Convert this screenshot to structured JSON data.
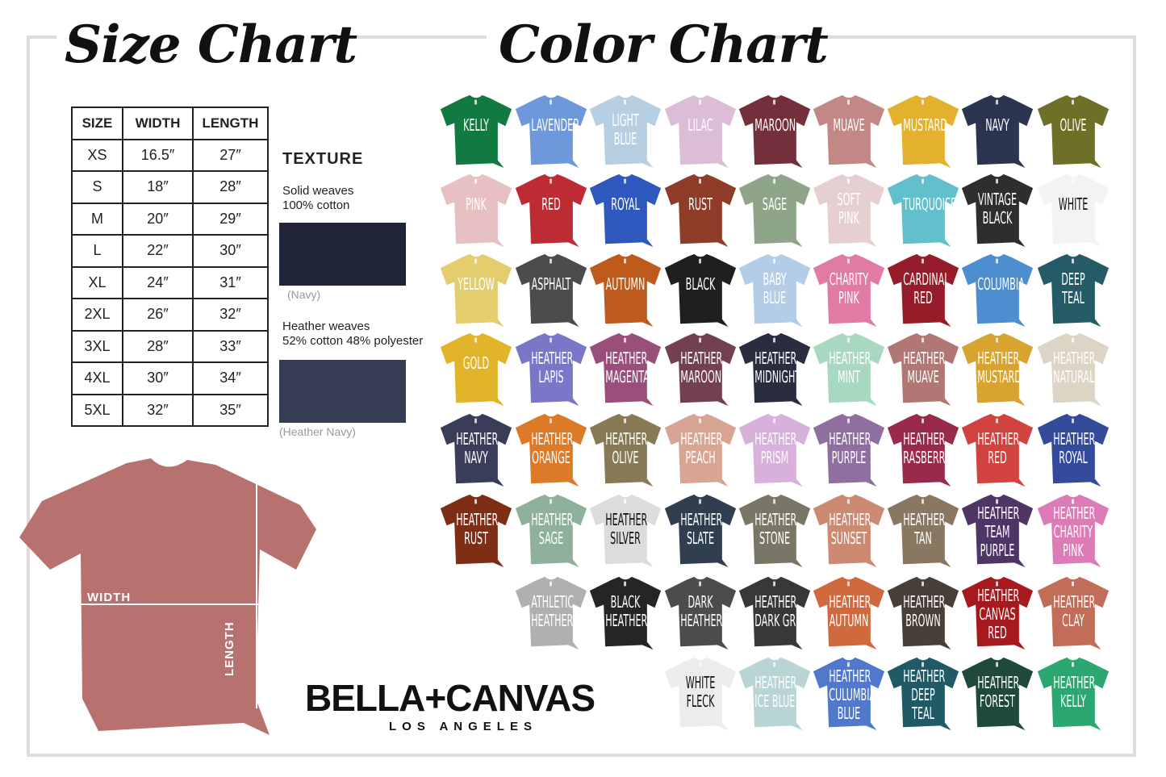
{
  "size_chart": {
    "title": "Size Chart",
    "headers": [
      "SIZE",
      "WIDTH",
      "LENGTH"
    ],
    "rows": [
      [
        "XS",
        "16.5″",
        "27″"
      ],
      [
        "S",
        "18″",
        "28″"
      ],
      [
        "M",
        "20″",
        "29″"
      ],
      [
        "L",
        "22″",
        "30″"
      ],
      [
        "XL",
        "24″",
        "31″"
      ],
      [
        "2XL",
        "26″",
        "32″"
      ],
      [
        "3XL",
        "28″",
        "33″"
      ],
      [
        "4XL",
        "30″",
        "34″"
      ],
      [
        "5XL",
        "32″",
        "35″"
      ]
    ]
  },
  "texture": {
    "heading": "TEXTURE",
    "solid_line1": "Solid weaves",
    "solid_line2": "100% cotton",
    "solid_caption": "(Navy)",
    "solid_color": "#1f2438",
    "heather_line1": "Heather weaves",
    "heather_line2": "52% cotton 48% polyester",
    "heather_caption": "(Heather Navy)",
    "heather_color": "#363c52"
  },
  "diagram": {
    "width_label": "WIDTH",
    "length_label": "LENGTH",
    "shirt_color": "#b7716f"
  },
  "brand": {
    "name": "BELLA+CANVAS",
    "sub": "LOS ANGELES"
  },
  "color_chart": {
    "title": "Color Chart",
    "rows": [
      [
        [
          "KELLY",
          "#117a40"
        ],
        [
          "LAVENDER",
          "#6e98dc"
        ],
        [
          "LIGHT\nBLUE",
          "#b7cfe3"
        ],
        [
          "LILAC",
          "#dcbdd8"
        ],
        [
          "MAROON",
          "#74303a"
        ],
        [
          "MUAVE",
          "#c38885"
        ],
        [
          "MUSTARD",
          "#e4b12e"
        ],
        [
          "NAVY",
          "#2b3550"
        ],
        [
          "OLIVE",
          "#6e7028"
        ]
      ],
      [
        [
          "PINK",
          "#e6c0c3"
        ],
        [
          "RED",
          "#be2c33"
        ],
        [
          "ROYAL",
          "#2e58bd"
        ],
        [
          "RUST",
          "#8f3d29"
        ],
        [
          "SAGE",
          "#8fa58a"
        ],
        [
          "SOFT\nPINK",
          "#e6cfd1"
        ],
        [
          "TURQUOISE",
          "#62bfcc"
        ],
        [
          "VINTAGE\nBLACK",
          "#2e2e2e"
        ],
        [
          "WHITE",
          "#f3f3f3"
        ]
      ],
      [
        [
          "YELLOW",
          "#e4cd6c"
        ],
        [
          "ASPHALT",
          "#4c4c4e"
        ],
        [
          "AUTUMN",
          "#bd5a1c"
        ],
        [
          "BLACK",
          "#1f1f1f"
        ],
        [
          "BABY\nBLUE",
          "#b4cde6"
        ],
        [
          "CHARITY\nPINK",
          "#e17ba3"
        ],
        [
          "CARDINAL\nRED",
          "#951c28"
        ],
        [
          "COLUMBIA",
          "#4d8ed0"
        ],
        [
          "DEEP\nTEAL",
          "#255b67"
        ]
      ],
      [
        [
          "GOLD",
          "#e2b42a"
        ],
        [
          "HEATHER\nLAPIS",
          "#7a76c8"
        ],
        [
          "HEATHER\nMAGENTA",
          "#9a4f7a"
        ],
        [
          "HEATHER\nMAROON",
          "#73404f"
        ],
        [
          "HEATHER\nMIDNIGHT",
          "#2a2c40"
        ],
        [
          "HEATHER\nMINT",
          "#a9d8c1"
        ],
        [
          "HEATHER\nMUAVE",
          "#b07775"
        ],
        [
          "HEATHER\nMUSTARD",
          "#d8a32e"
        ],
        [
          "HEATHER\nNATURAL",
          "#dcd4c4"
        ]
      ],
      [
        [
          "HEATHER\nNAVY",
          "#3a3d5a"
        ],
        [
          "HEATHER\nORANGE",
          "#dc7a2a"
        ],
        [
          "HEATHER\nOLIVE",
          "#877a55"
        ],
        [
          "HEATHER\nPEACH",
          "#d8a493"
        ],
        [
          "HEATHER\nPRISM",
          "#d8b0dc"
        ],
        [
          "HEATHER\nPURPLE",
          "#8f6f9f"
        ],
        [
          "HEATHER\nRASBERRY",
          "#9a2a4a"
        ],
        [
          "HEATHER\nRED",
          "#d2433f"
        ],
        [
          "HEATHER\nROYAL",
          "#344a9a"
        ]
      ],
      [
        [
          "HEATHER\nRUST",
          "#7f2e16"
        ],
        [
          "HEATHER\nSAGE",
          "#8fb09a"
        ],
        [
          "HEATHER\nSILVER",
          "#dcdcdc"
        ],
        [
          "HEATHER\nSLATE",
          "#2f3f4f"
        ],
        [
          "HEATHER\nSTONE",
          "#7a7666"
        ],
        [
          "HEATHER\nSUNSET",
          "#cc8a72"
        ],
        [
          "HEATHER\nTAN",
          "#8a7762"
        ],
        [
          "HEATHER\nTEAM\nPURPLE",
          "#4f3566"
        ],
        [
          "HEATHER\nCHARITY\nPINK",
          "#dc7bb5"
        ]
      ],
      [
        [
          "ATHLETIC\nHEATHER",
          "#b0b0b0"
        ],
        [
          "BLACK\nHEATHER",
          "#252525"
        ],
        [
          "DARK\nHEATHER",
          "#4c4c4c"
        ],
        [
          "HEATHER\nDARK GREY",
          "#383838"
        ],
        [
          "HEATHER\nAUTUMN",
          "#d06a3e"
        ],
        [
          "HEATHER\nBROWN",
          "#4a3e38"
        ],
        [
          "HEATHER\nCANVAS\nRED",
          "#a8191e"
        ],
        [
          "HEATHER\nCLAY",
          "#c26d58"
        ]
      ],
      [
        [
          "WHITE\nFLECK",
          "#ececec"
        ],
        [
          "HEATHER\nICE BLUE",
          "#b8d4d4"
        ],
        [
          "HEATHER\nCULUMBIA\nBLUE",
          "#5078cc"
        ],
        [
          "HEATHER\nDEEP\nTEAL",
          "#1f5a66"
        ],
        [
          "HEATHER\nFOREST",
          "#1f4a3a"
        ],
        [
          "HEATHER\nKELLY",
          "#2aa870"
        ]
      ]
    ]
  }
}
